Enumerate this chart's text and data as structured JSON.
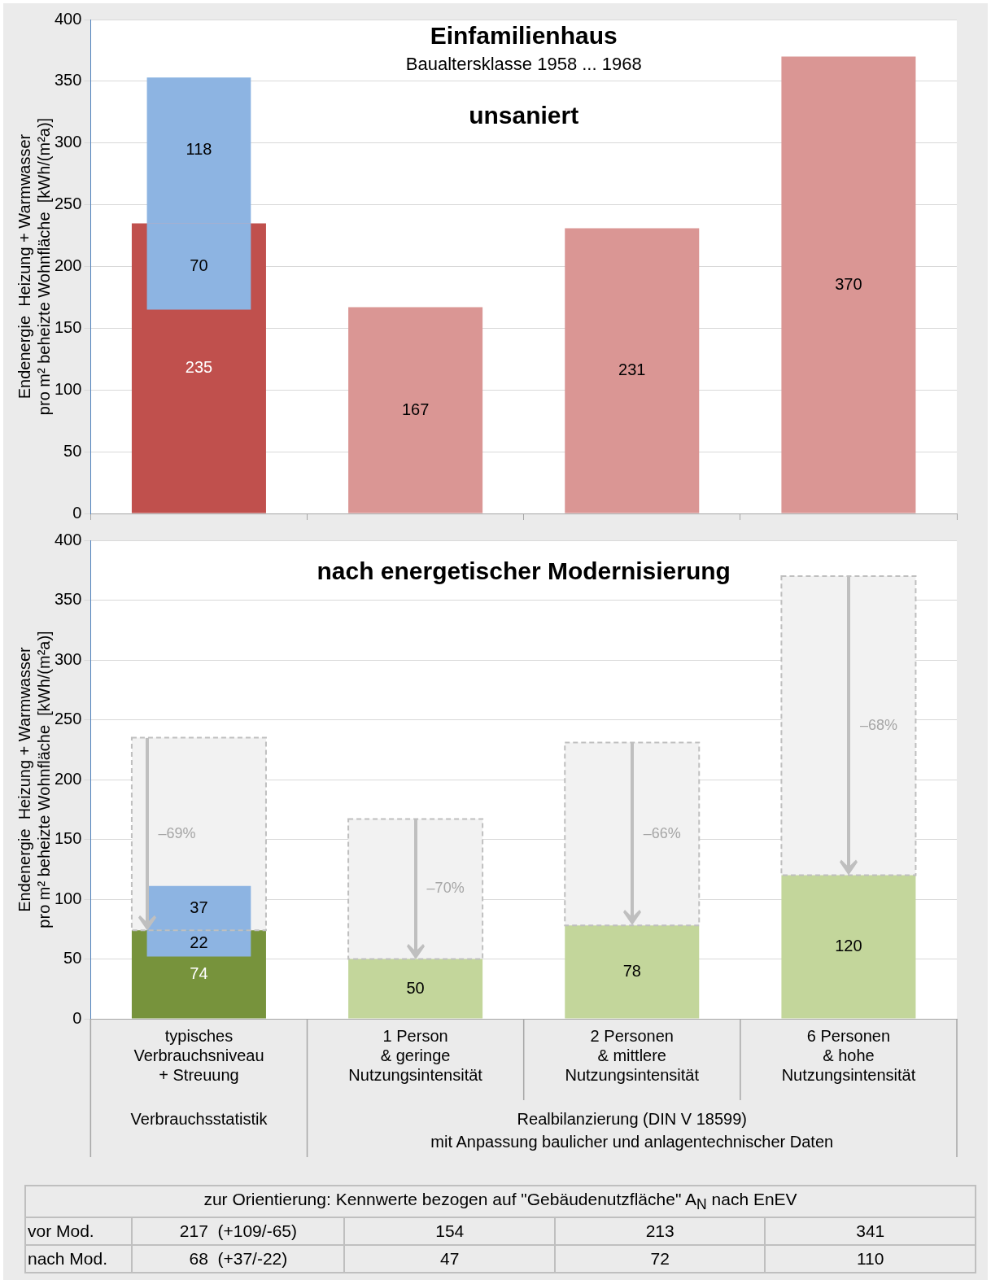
{
  "chart_data": [
    {
      "type": "bar",
      "title": "Einfamilienhaus",
      "subtitle": "Baualtersklasse 1958 ... 1968",
      "annotations": [
        "unsaniert"
      ],
      "ylabel": "Endenergie  Heizung + Warmwasser\npro m² beheizte Wohnfläche  [kWh/(m²a)]",
      "categories": [
        null,
        null,
        null,
        null
      ],
      "series": [
        {
          "values": [
            235,
            167,
            231,
            370
          ],
          "colors": [
            "#c0504d",
            "#da9694",
            "#da9694",
            "#da9694"
          ],
          "value_labels": [
            "235",
            "167",
            "231",
            "370"
          ]
        },
        {
          "color": "#8db4e2",
          "base": [
            165,
            null,
            null,
            null
          ],
          "values": [
            70,
            null,
            null,
            null
          ],
          "value_labels": [
            "70",
            null,
            null,
            null
          ]
        },
        {
          "color": "#8db4e2",
          "base": [
            235,
            null,
            null,
            null
          ],
          "values": [
            118,
            null,
            null,
            null
          ],
          "value_labels": [
            "118",
            null,
            null,
            null
          ]
        }
      ],
      "ylim": [
        0,
        400
      ],
      "yticks": [
        0,
        50,
        100,
        150,
        200,
        250,
        300,
        350,
        400
      ],
      "grid": "y",
      "legend": false,
      "tick_labels": "y"
    },
    {
      "type": "bar",
      "title": "nach energetischer Modernisierung",
      "ylabel": "Endenergie  Heizung + Warmwasser\npro m² beheizte Wohnfläche  [kWh/(m²a)]",
      "categories": [
        "typisches\nVerbrauchsniveau\n+ Streuung",
        "1 Person\n& geringe\nNutzungsintensität",
        "2 Personen\n& mittlere\nNutzungsintensität",
        "6 Personen\n& hohe\nNutzungsintensität"
      ],
      "series": [
        {
          "color": "#f2f2f2",
          "line_style": "dashed",
          "base": [
            74,
            50,
            78,
            120
          ],
          "values": [
            161,
            117,
            153,
            250
          ]
        },
        {
          "values": [
            74,
            50,
            78,
            120
          ],
          "colors": [
            "#77933c",
            "#c3d69b",
            "#c3d69b",
            "#c3d69b"
          ],
          "value_labels": [
            "74",
            "50",
            "78",
            "120"
          ]
        },
        {
          "color": "#8db4e2",
          "base": [
            52,
            null,
            null,
            null
          ],
          "values": [
            22,
            null,
            null,
            null
          ],
          "value_labels": [
            "22",
            null,
            null,
            null
          ]
        },
        {
          "color": "#8db4e2",
          "base": [
            74,
            null,
            null,
            null
          ],
          "values": [
            37,
            null,
            null,
            null
          ],
          "value_labels": [
            "37",
            null,
            null,
            null
          ]
        }
      ],
      "annotations": [
        "–69%",
        "–70%",
        "–66%",
        "–68%",
        "Verbrauchsstatistik",
        "Realbilanzierung (DIN V 18599)\nmit Anpassung baulicher und anlagentechnischer Daten"
      ],
      "ylim": [
        0,
        400
      ],
      "yticks": [
        0,
        50,
        100,
        150,
        200,
        250,
        300,
        350,
        400
      ],
      "grid": "y",
      "legend": false
    },
    {
      "type": "other",
      "title": "zur Orientierung: Kennwerte bezogen auf \"Gebäudenutzfläche\" A$_{N}$ nach EnEV",
      "annotations": [
        "vor Mod.",
        "217  (+109/-65)",
        "154",
        "213",
        "341",
        "nach Mod.",
        "68  (+37/-22)",
        "47",
        "72",
        "110"
      ]
    }
  ]
}
